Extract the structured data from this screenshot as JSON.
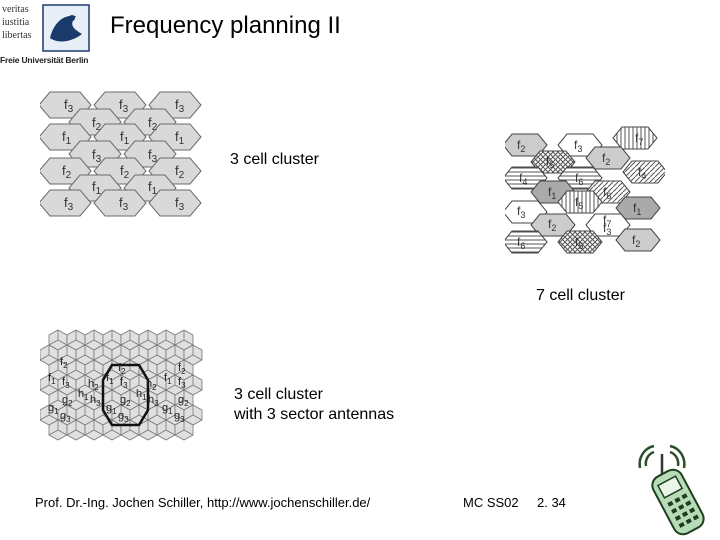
{
  "logo": {
    "motto_lines": [
      "veritas",
      "iustitia",
      "libertas"
    ],
    "university": "Freie Universität Berlin"
  },
  "title": "Frequency planning II",
  "diagram1": {
    "caption": "3 cell cluster",
    "cells": [
      {
        "f": "f",
        "s": "3"
      },
      {
        "f": "f",
        "s": "2"
      },
      {
        "f": "f",
        "s": "3"
      },
      {
        "f": "f",
        "s": "2"
      },
      {
        "f": "f",
        "s": "3"
      },
      {
        "f": "f",
        "s": "1"
      },
      {
        "f": "f",
        "s": "3"
      },
      {
        "f": "f",
        "s": "1"
      },
      {
        "f": "f",
        "s": "3"
      },
      {
        "f": "f",
        "s": "1"
      },
      {
        "f": "f",
        "s": "2"
      },
      {
        "f": "f",
        "s": "1"
      },
      {
        "f": "f",
        "s": "2"
      },
      {
        "f": "f",
        "s": "1"
      },
      {
        "f": "f",
        "s": "2"
      },
      {
        "f": "f",
        "s": "3"
      },
      {
        "f": "f",
        "s": "3"
      },
      {
        "f": "f",
        "s": "3"
      }
    ]
  },
  "diagram2": {
    "caption": "7 cell cluster",
    "cells": [
      {
        "f": "f",
        "s": "2"
      },
      {
        "f": "f",
        "s": "3"
      },
      {
        "f": "f",
        "s": "7"
      },
      {
        "f": "f",
        "s": "5"
      },
      {
        "f": "f",
        "s": "2"
      },
      {
        "f": "f",
        "s": "4"
      },
      {
        "f": "f",
        "s": "4"
      },
      {
        "f": "f",
        "s": "6"
      },
      {
        "f": "f",
        "s": "6"
      },
      {
        "f": "f",
        "s": "1"
      },
      {
        "f": "f",
        "s": "5"
      },
      {
        "f": "f",
        "s": "3"
      },
      {
        "f": "f",
        "s": "7"
      },
      {
        "f": "f",
        "s": "1"
      },
      {
        "f": "f",
        "s": "2"
      },
      {
        "f": "f",
        "s": "3"
      },
      {
        "f": "f",
        "s": "6"
      },
      {
        "f": "f",
        "s": "5"
      },
      {
        "f": "f",
        "s": "2"
      }
    ]
  },
  "diagram3": {
    "caption_line1": "3 cell cluster",
    "caption_line2": "with 3 sector antennas",
    "labels": [
      {
        "f": "f",
        "s": "2"
      },
      {
        "f": "f",
        "s": "1"
      },
      {
        "f": "f",
        "s": "3"
      },
      {
        "f": "h",
        "s": "2"
      },
      {
        "f": "g",
        "s": "2"
      },
      {
        "f": "h",
        "s": "1"
      },
      {
        "f": "h",
        "s": "3"
      },
      {
        "f": "g",
        "s": "1"
      },
      {
        "f": "g",
        "s": "3"
      },
      {
        "f": "f",
        "s": "2"
      },
      {
        "f": "f",
        "s": "1"
      },
      {
        "f": "f",
        "s": "3"
      },
      {
        "f": "h",
        "s": "2"
      },
      {
        "f": "g",
        "s": "2"
      },
      {
        "f": "h",
        "s": "1"
      },
      {
        "f": "h",
        "s": "3"
      },
      {
        "f": "g",
        "s": "1"
      },
      {
        "f": "g",
        "s": "3"
      },
      {
        "f": "f",
        "s": "2"
      },
      {
        "f": "f",
        "s": "1"
      },
      {
        "f": "f",
        "s": "3"
      },
      {
        "f": "g",
        "s": "2"
      },
      {
        "f": "g",
        "s": "1"
      },
      {
        "f": "g",
        "s": "3"
      }
    ]
  },
  "footer": {
    "author": "Prof. Dr.-Ing. Jochen Schiller, http://www.jochenschiller.de/",
    "course": "MC SS02",
    "page": "2. 34"
  }
}
